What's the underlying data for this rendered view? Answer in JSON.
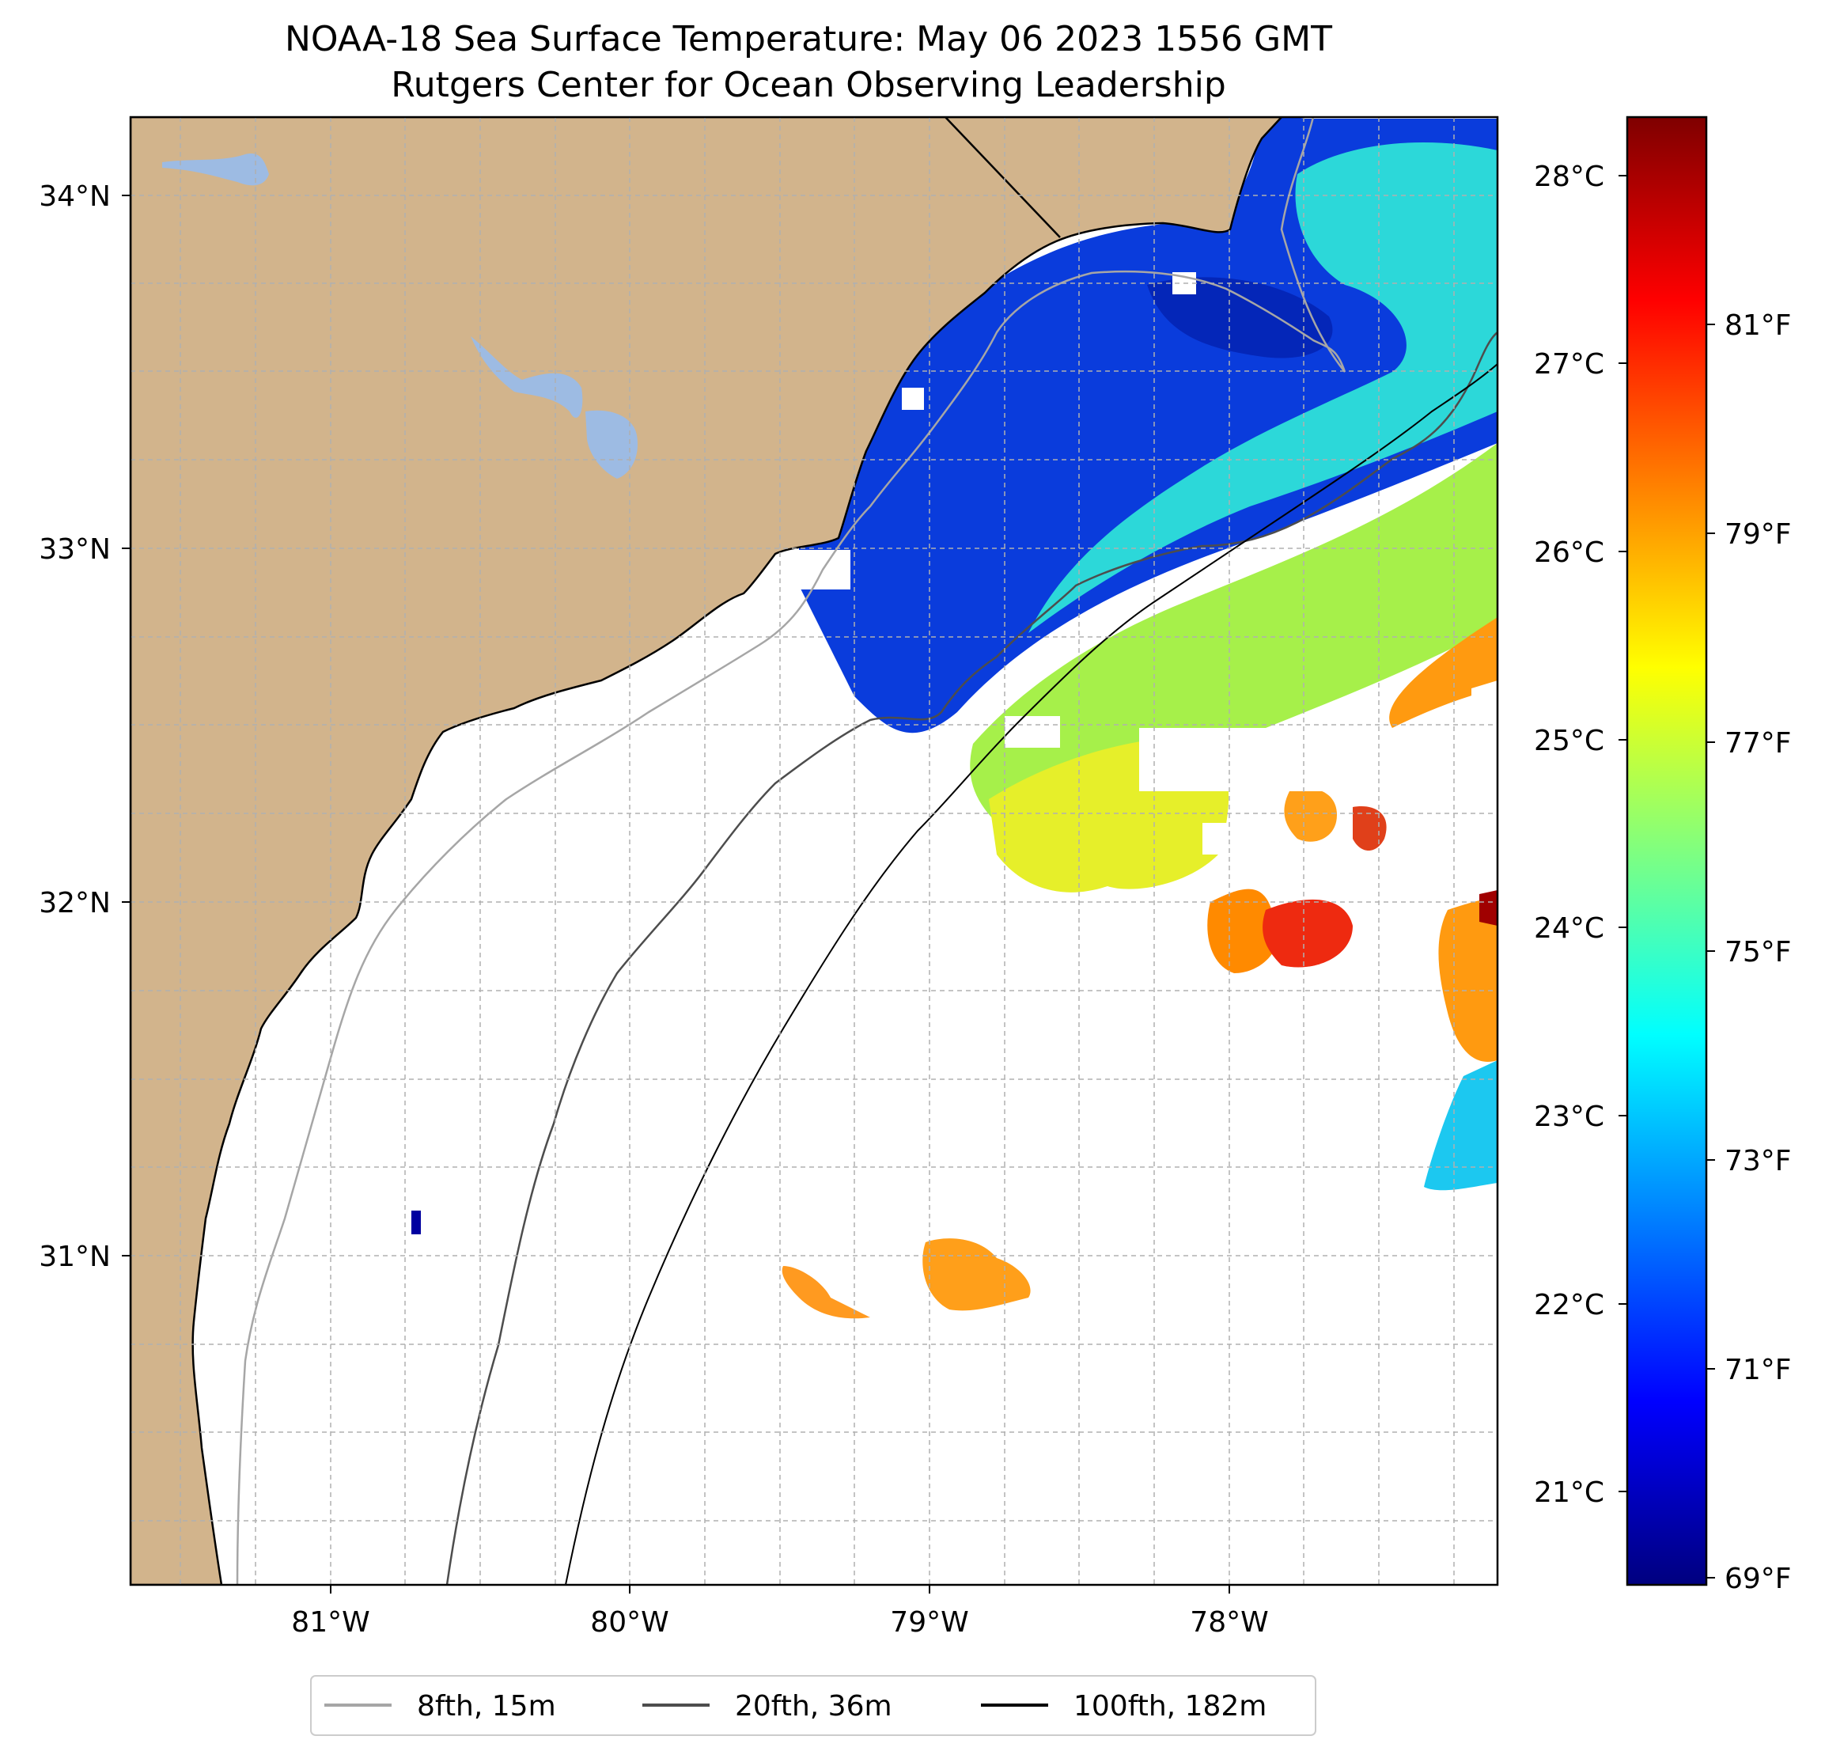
{
  "title": {
    "line1": "NOAA-18 Sea Surface Temperature: May 06 2023 1556 GMT",
    "line2": "Rutgers Center for Ocean Observing Leadership"
  },
  "map": {
    "lon_range": [
      -81.68,
      -77.12
    ],
    "lat_range": [
      30.1,
      34.22
    ],
    "lon_ticks": [
      {
        "value": -81,
        "label": "81°W"
      },
      {
        "value": -80,
        "label": "80°W"
      },
      {
        "value": -79,
        "label": "79°W"
      },
      {
        "value": -78,
        "label": "78°W"
      }
    ],
    "lat_ticks": [
      {
        "value": 31,
        "label": "31°N"
      },
      {
        "value": 32,
        "label": "32°N"
      },
      {
        "value": 33,
        "label": "33°N"
      },
      {
        "value": 34,
        "label": "34°N"
      }
    ],
    "land_color": "#d2b48c",
    "water_color": "#9dbbe3",
    "gridlines": "dashed"
  },
  "colorbar": {
    "colormap": "jet",
    "celsius_range": [
      20.5,
      28.3
    ],
    "celsius_labels": [
      "21°C",
      "22°C",
      "23°C",
      "24°C",
      "25°C",
      "26°C",
      "27°C",
      "28°C"
    ],
    "fahrenheit_labels": [
      "69°F",
      "71°F",
      "73°F",
      "75°F",
      "77°F",
      "79°F",
      "81°F"
    ]
  },
  "legend": {
    "items": [
      {
        "label": "8fth, 15m",
        "color": "#a6a6a6"
      },
      {
        "label": "20fth, 36m",
        "color": "#4d4d4d"
      },
      {
        "label": "100fth, 182m",
        "color": "#000000"
      }
    ],
    "placement": "bottom-center"
  }
}
